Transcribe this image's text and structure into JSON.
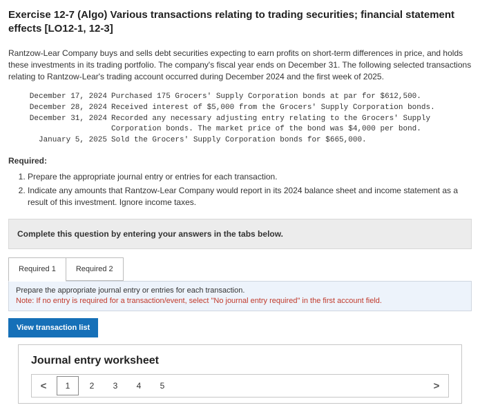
{
  "header": {
    "title": "Exercise 12-7 (Algo) Various transactions relating to trading securities; financial statement effects [LO12-1, 12-3]"
  },
  "narrative": "Rantzow-Lear Company buys and sells debt securities expecting to earn profits on short-term differences in price, and holds these investments in its trading portfolio. The company's fiscal year ends on December 31. The following selected transactions relating to Rantzow-Lear's trading account occurred during December 2024 and the first week of 2025.",
  "transactions": [
    {
      "date": "December 17, 2024",
      "desc": "Purchased 175 Grocers' Supply Corporation bonds at par for $612,500."
    },
    {
      "date": "December 28, 2024",
      "desc": "Received interest of $5,000 from the Grocers' Supply Corporation bonds."
    },
    {
      "date": "December 31, 2024",
      "desc": "Recorded any necessary adjusting entry relating to the Grocers' Supply Corporation bonds. The market price of the bond was $4,000 per bond."
    },
    {
      "date": "January 5, 2025",
      "desc": "Sold the Grocers' Supply Corporation bonds for $665,000."
    }
  ],
  "required_label": "Required:",
  "required_items": [
    "Prepare the appropriate journal entry or entries for each transaction.",
    "Indicate any amounts that Rantzow-Lear Company would report in its 2024 balance sheet and income statement as a result of this investment. Ignore income taxes."
  ],
  "gray_box": "Complete this question by entering your answers in the tabs below.",
  "tabs": {
    "items": [
      "Required 1",
      "Required 2"
    ],
    "activeIndex": 0
  },
  "instruction": {
    "main": "Prepare the appropriate journal entry or entries for each transaction.",
    "note": "Note: If no entry is required for a transaction/event, select \"No journal entry required\" in the first account field."
  },
  "button_label": "View transaction list",
  "worksheet": {
    "title": "Journal entry worksheet",
    "pages": [
      "1",
      "2",
      "3",
      "4",
      "5"
    ],
    "activePage": 0,
    "chev_left": "<",
    "chev_right": ">"
  },
  "colors": {
    "gray_box_bg": "#ececec",
    "instr_bg": "#edf3fb",
    "note_color": "#c0392b",
    "button_bg": "#1670b8"
  }
}
